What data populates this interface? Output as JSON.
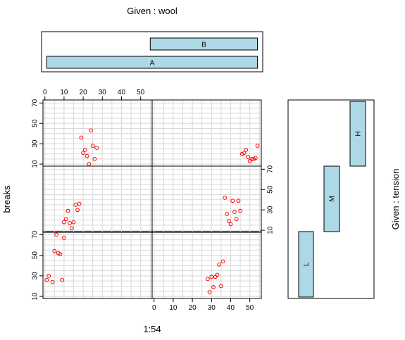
{
  "chart_data": {
    "type": "scatter",
    "title": "",
    "xlabel": "1:54",
    "ylabel": "breaks",
    "given_top_label": "Given : wool",
    "given_right_label": "Given : tension",
    "wool_levels": [
      "A",
      "B"
    ],
    "wool_ranges": {
      "A": [
        1,
        54
      ],
      "B": [
        28,
        54
      ]
    },
    "tension_levels": [
      "L",
      "M",
      "H"
    ],
    "x_ticks": [
      "0",
      "10",
      "20",
      "30",
      "40",
      "50"
    ],
    "y_ticks": [
      "10",
      "30",
      "50",
      "70"
    ],
    "xlim": [
      -1,
      56
    ],
    "ylim": [
      8,
      73
    ],
    "point_color": "#ff0000",
    "cobar_color": "#add8e6",
    "panels": [
      {
        "wool": "A",
        "tension": "L",
        "x": [
          1,
          2,
          4,
          5,
          6,
          7,
          8,
          9,
          10
        ],
        "y": [
          26,
          30,
          24,
          54,
          70,
          52,
          51,
          26,
          67
        ]
      },
      {
        "wool": "B",
        "tension": "L",
        "x": [
          28,
          29,
          30,
          31,
          32,
          33,
          34,
          35,
          36
        ],
        "y": [
          27,
          14,
          29,
          19,
          29,
          31,
          41,
          20,
          44
        ]
      },
      {
        "wool": "A",
        "tension": "M",
        "x": [
          10,
          11,
          12,
          13,
          14,
          15,
          16,
          17,
          18
        ],
        "y": [
          18,
          21,
          29,
          17,
          12,
          18,
          35,
          30,
          36
        ]
      },
      {
        "wool": "B",
        "tension": "M",
        "x": [
          37,
          38,
          39,
          40,
          41,
          42,
          43,
          44,
          45
        ],
        "y": [
          42,
          26,
          19,
          16,
          39,
          28,
          21,
          39,
          29
        ]
      },
      {
        "wool": "A",
        "tension": "H",
        "x": [
          19,
          20,
          21,
          22,
          23,
          24,
          25,
          26,
          27
        ],
        "y": [
          36,
          21,
          24,
          18,
          10,
          43,
          28,
          15,
          26
        ]
      },
      {
        "wool": "B",
        "tension": "H",
        "x": [
          46,
          47,
          48,
          49,
          50,
          51,
          52,
          53,
          54
        ],
        "y": [
          20,
          21,
          24,
          17,
          13,
          15,
          15,
          16,
          28
        ]
      }
    ]
  }
}
